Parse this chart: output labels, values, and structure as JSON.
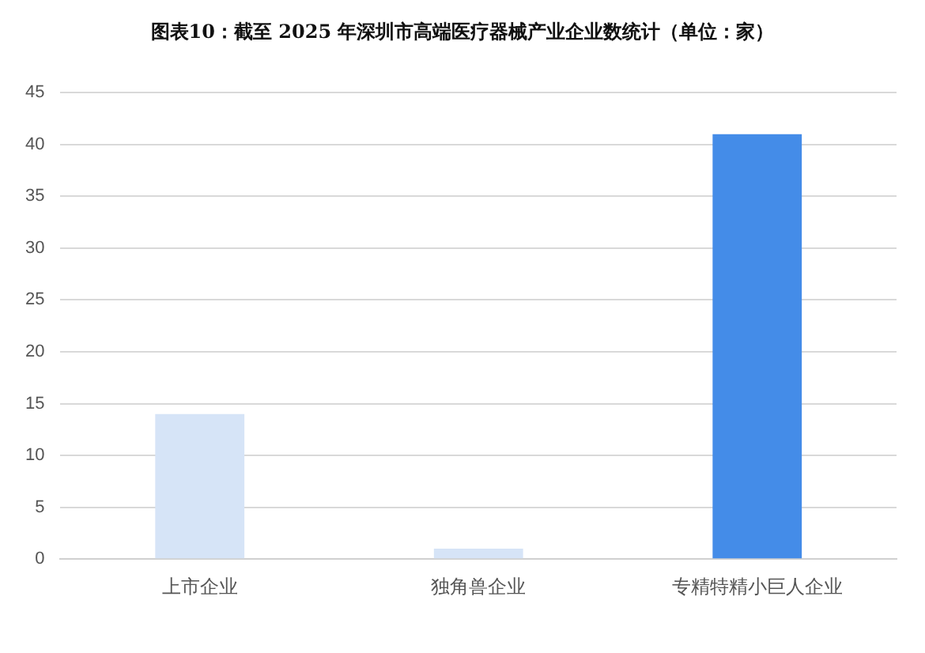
{
  "chart_data": {
    "type": "bar",
    "title": "图表10：截至 2025 年深圳市高端医疗器械产业企业数统计（单位：家）",
    "categories": [
      "上市企业",
      "独角兽企业",
      "专精特精小巨人企业"
    ],
    "values": [
      14,
      1,
      41
    ],
    "colors": [
      "#d6e4f7",
      "#d6e4f7",
      "#448ce8"
    ],
    "ylim": [
      0,
      45
    ],
    "yticks": [
      0,
      5,
      10,
      15,
      20,
      25,
      30,
      35,
      40,
      45
    ],
    "grid": "y"
  }
}
